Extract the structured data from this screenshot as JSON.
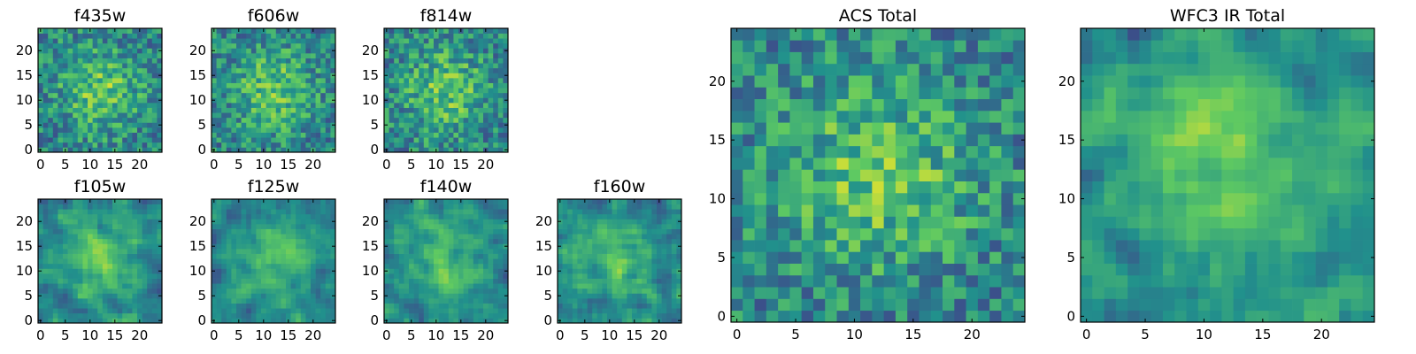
{
  "colormap": [
    "#440154",
    "#3b528b",
    "#21918c",
    "#5ec962",
    "#fde725"
  ],
  "chart_data": [
    {
      "type": "heatmap",
      "title": "f435w",
      "grid_size": 25,
      "seed": 435,
      "smooth": 0,
      "xticks": [
        0,
        5,
        10,
        15,
        20
      ],
      "yticks": [
        0,
        5,
        10,
        15,
        20
      ],
      "xlim": [
        -0.5,
        24.5
      ],
      "ylim": [
        -0.5,
        24.5
      ]
    },
    {
      "type": "heatmap",
      "title": "f606w",
      "grid_size": 25,
      "seed": 606,
      "smooth": 0,
      "xticks": [
        0,
        5,
        10,
        15,
        20
      ],
      "yticks": [
        0,
        5,
        10,
        15,
        20
      ],
      "xlim": [
        -0.5,
        24.5
      ],
      "ylim": [
        -0.5,
        24.5
      ]
    },
    {
      "type": "heatmap",
      "title": "f814w",
      "grid_size": 25,
      "seed": 814,
      "smooth": 0,
      "xticks": [
        0,
        5,
        10,
        15,
        20
      ],
      "yticks": [
        0,
        5,
        10,
        15,
        20
      ],
      "xlim": [
        -0.5,
        24.5
      ],
      "ylim": [
        -0.5,
        24.5
      ]
    },
    {
      "type": "heatmap",
      "title": "f105w",
      "grid_size": 25,
      "seed": 105,
      "smooth": 1,
      "xticks": [
        0,
        5,
        10,
        15,
        20
      ],
      "yticks": [
        0,
        5,
        10,
        15,
        20
      ],
      "xlim": [
        -0.5,
        24.5
      ],
      "ylim": [
        -0.5,
        24.5
      ]
    },
    {
      "type": "heatmap",
      "title": "f125w",
      "grid_size": 25,
      "seed": 125,
      "smooth": 1,
      "xticks": [
        0,
        5,
        10,
        15,
        20
      ],
      "yticks": [
        0,
        5,
        10,
        15,
        20
      ],
      "xlim": [
        -0.5,
        24.5
      ],
      "ylim": [
        -0.5,
        24.5
      ]
    },
    {
      "type": "heatmap",
      "title": "f140w",
      "grid_size": 25,
      "seed": 140,
      "smooth": 1,
      "xticks": [
        0,
        5,
        10,
        15,
        20
      ],
      "yticks": [
        0,
        5,
        10,
        15,
        20
      ],
      "xlim": [
        -0.5,
        24.5
      ],
      "ylim": [
        -0.5,
        24.5
      ]
    },
    {
      "type": "heatmap",
      "title": "f160w",
      "grid_size": 25,
      "seed": 160,
      "smooth": 1,
      "xticks": [
        0,
        5,
        10,
        15,
        20
      ],
      "yticks": [
        0,
        5,
        10,
        15,
        20
      ],
      "xlim": [
        -0.5,
        24.5
      ],
      "ylim": [
        -0.5,
        24.5
      ]
    },
    {
      "type": "heatmap",
      "title": "ACS Total",
      "grid_size": 25,
      "seed": 999,
      "smooth": 0,
      "xticks": [
        0,
        5,
        10,
        15,
        20
      ],
      "yticks": [
        0,
        5,
        10,
        15,
        20
      ],
      "xlim": [
        -0.5,
        24.5
      ],
      "ylim": [
        -0.5,
        24.5
      ]
    },
    {
      "type": "heatmap",
      "title": "WFC3 IR Total",
      "grid_size": 25,
      "seed": 777,
      "smooth": 1,
      "xticks": [
        0,
        5,
        10,
        15,
        20
      ],
      "yticks": [
        0,
        5,
        10,
        15,
        20
      ],
      "xlim": [
        -0.5,
        24.5
      ],
      "ylim": [
        -0.5,
        24.5
      ]
    }
  ]
}
